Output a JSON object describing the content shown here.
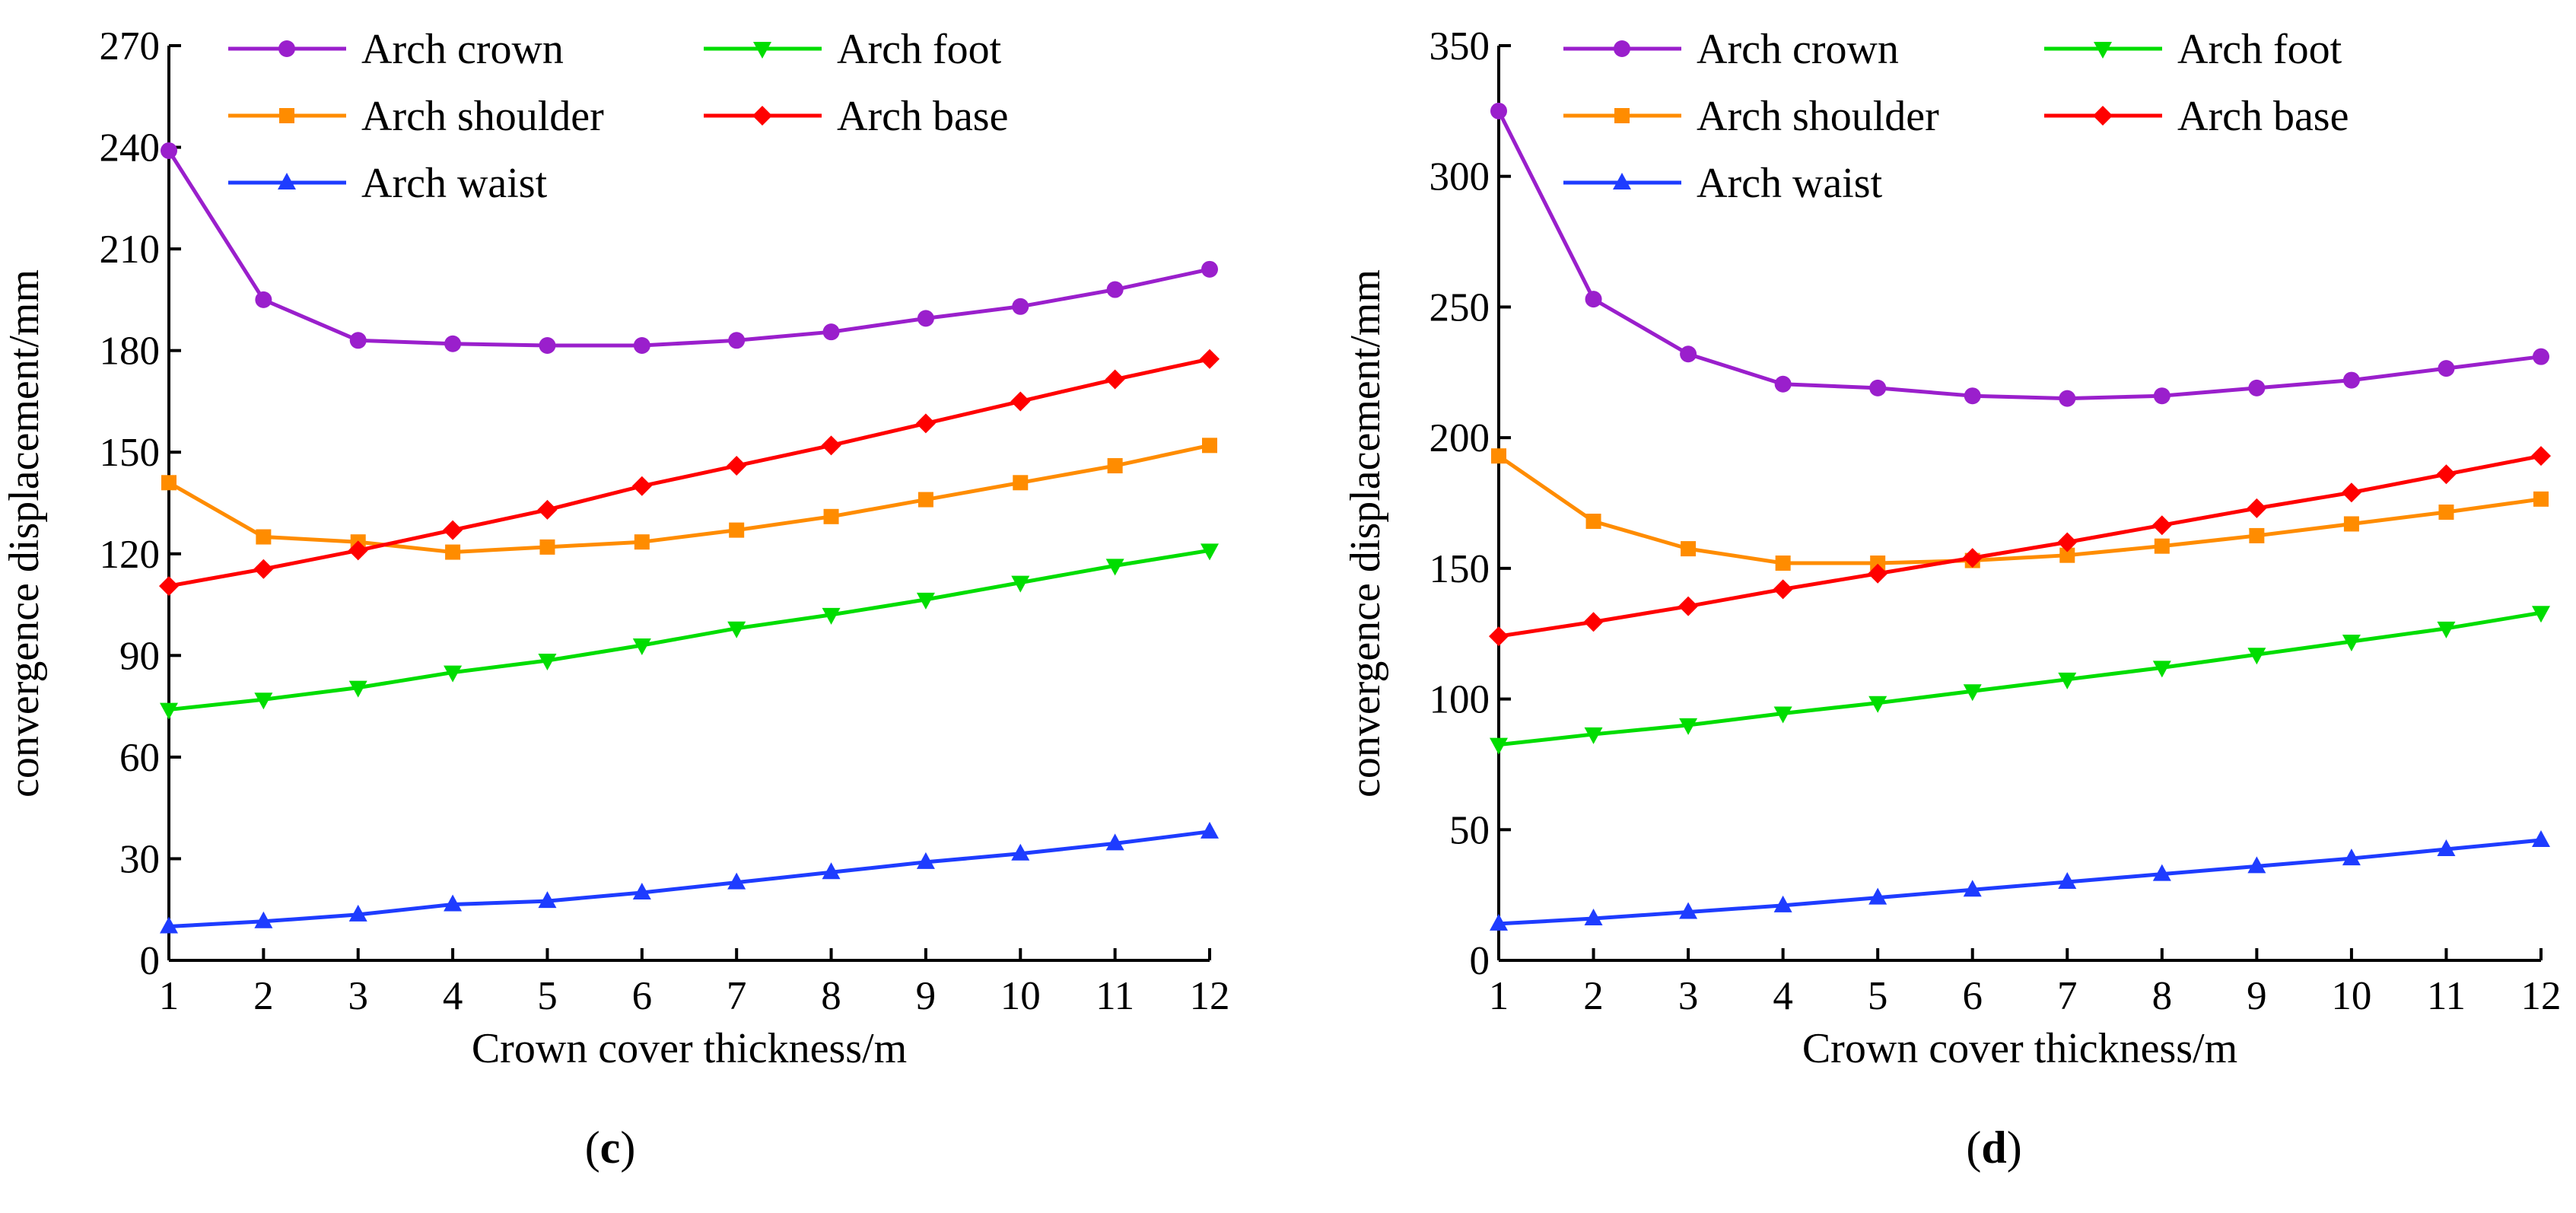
{
  "chart_data": [
    {
      "type": "line",
      "panel": "c",
      "xlabel": "Crown cover thickness/m",
      "ylabel": "convergence displacement/mm",
      "x": [
        1,
        2,
        3,
        4,
        5,
        6,
        7,
        8,
        9,
        10,
        11,
        12
      ],
      "xlim": [
        1,
        12
      ],
      "ylim": [
        0,
        270
      ],
      "yticks": [
        0,
        30,
        60,
        90,
        120,
        150,
        180,
        210,
        240,
        270
      ],
      "series": [
        {
          "name": "Arch crown",
          "color": "#9a1fcc",
          "marker": "circle",
          "values": [
            239,
            195,
            183,
            182,
            181.5,
            181.5,
            183,
            185.5,
            189.5,
            193,
            198,
            204
          ]
        },
        {
          "name": "Arch shoulder",
          "color": "#ff8c00",
          "marker": "square",
          "values": [
            141,
            125,
            123.5,
            120.5,
            122,
            123.5,
            127,
            131,
            136,
            141,
            146,
            152
          ]
        },
        {
          "name": "Arch waist",
          "color": "#1e3cff",
          "marker": "triangle-up",
          "values": [
            10,
            11.5,
            13.5,
            16.5,
            17.5,
            20,
            23,
            26,
            29,
            31.5,
            34.5,
            38
          ]
        },
        {
          "name": "Arch foot",
          "color": "#00dd00",
          "marker": "triangle-down",
          "values": [
            74,
            77,
            80.5,
            85,
            88.5,
            93,
            98,
            102,
            106.5,
            111.5,
            116.5,
            121
          ]
        },
        {
          "name": "Arch base",
          "color": "#ff0000",
          "marker": "diamond",
          "values": [
            110.5,
            115.5,
            121,
            127,
            133,
            140,
            146,
            152,
            158.5,
            165,
            171.5,
            177.5
          ]
        }
      ]
    },
    {
      "type": "line",
      "panel": "d",
      "xlabel": "Crown cover thickness/m",
      "ylabel": "convergence displacement/mm",
      "x": [
        1,
        2,
        3,
        4,
        5,
        6,
        7,
        8,
        9,
        10,
        11,
        12
      ],
      "xlim": [
        1,
        12
      ],
      "ylim": [
        0,
        350
      ],
      "yticks": [
        0,
        50,
        100,
        150,
        200,
        250,
        300,
        350
      ],
      "series": [
        {
          "name": "Arch crown",
          "color": "#9a1fcc",
          "marker": "circle",
          "values": [
            325,
            253,
            232,
            220.5,
            219,
            216,
            215,
            216,
            219,
            222,
            226.5,
            231
          ]
        },
        {
          "name": "Arch shoulder",
          "color": "#ff8c00",
          "marker": "square",
          "values": [
            193,
            168,
            157.5,
            152,
            152,
            153,
            155,
            158.5,
            162.5,
            167,
            171.5,
            176.5
          ]
        },
        {
          "name": "Arch waist",
          "color": "#1e3cff",
          "marker": "triangle-up",
          "values": [
            14,
            16,
            18.5,
            21,
            24,
            27,
            30,
            33,
            36,
            39,
            42.5,
            46
          ]
        },
        {
          "name": "Arch foot",
          "color": "#00dd00",
          "marker": "triangle-down",
          "values": [
            82.5,
            86.5,
            90,
            94.5,
            98.5,
            103,
            107.5,
            112,
            117,
            122,
            127,
            133
          ]
        },
        {
          "name": "Arch base",
          "color": "#ff0000",
          "marker": "diamond",
          "values": [
            124,
            129.5,
            135.5,
            142,
            148,
            154,
            160,
            166.5,
            173,
            179,
            186,
            193
          ]
        }
      ]
    }
  ],
  "captions": {
    "c": {
      "open": "(",
      "letter": "c",
      "close": ")"
    },
    "d": {
      "open": "(",
      "letter": "d",
      "close": ")"
    }
  }
}
